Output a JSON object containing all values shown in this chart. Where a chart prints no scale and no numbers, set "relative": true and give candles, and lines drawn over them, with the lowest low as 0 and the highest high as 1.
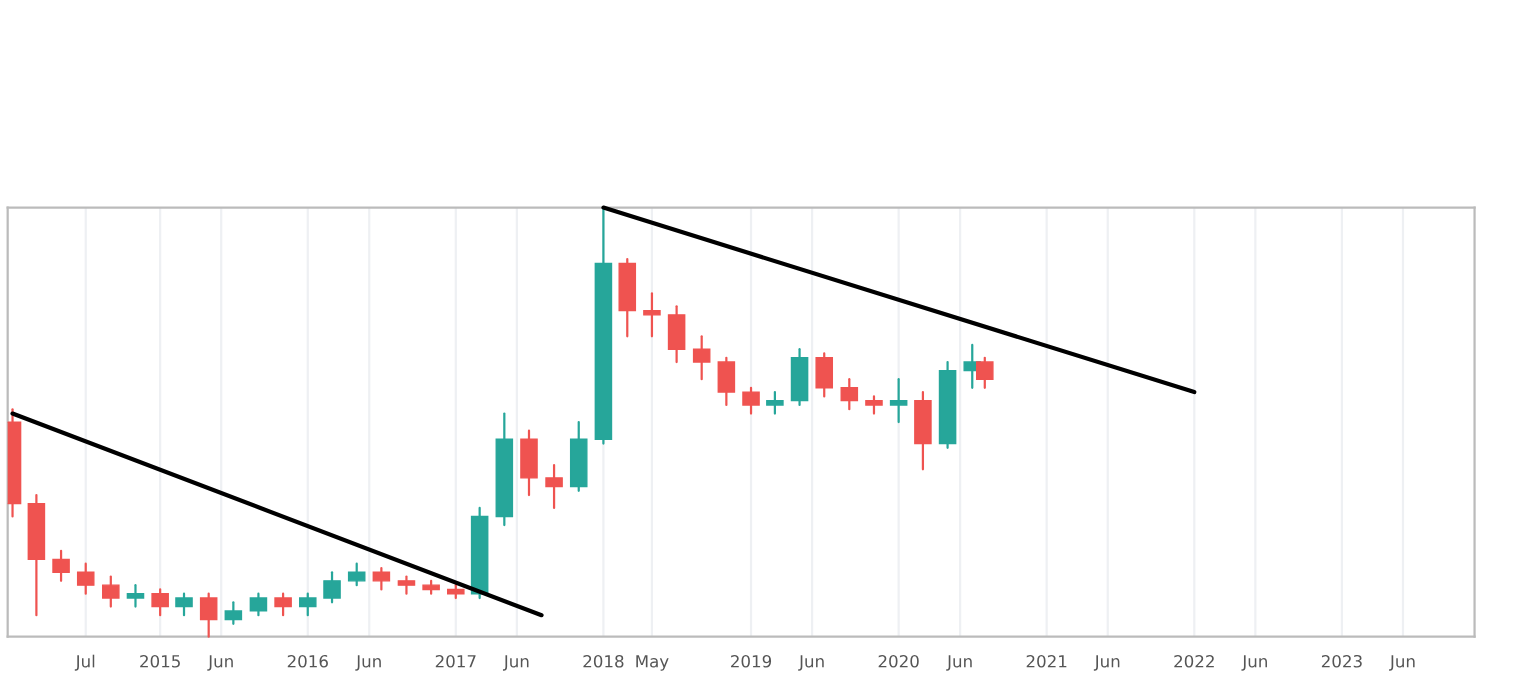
{
  "chart_data": {
    "type": "candlestick",
    "relative": true,
    "x": [
      "2014-01",
      "2014-03",
      "2014-05",
      "2014-07",
      "2014-09",
      "2014-11",
      "2015-01",
      "2015-03",
      "2015-05",
      "2015-07",
      "2015-09",
      "2015-11",
      "2016-01",
      "2016-03",
      "2016-05",
      "2016-07",
      "2016-09",
      "2016-11",
      "2017-01",
      "2017-03",
      "2017-05",
      "2017-07",
      "2017-09",
      "2017-11",
      "2018-01",
      "2018-03",
      "2018-05",
      "2018-07",
      "2018-09",
      "2018-11",
      "2019-01",
      "2019-03",
      "2019-05",
      "2019-07",
      "2019-09",
      "2019-11",
      "2020-01",
      "2020-03",
      "2020-05",
      "2020-07",
      "2020-08"
    ],
    "ohlc": [
      [
        0.5,
        0.53,
        0.28,
        0.31
      ],
      [
        0.31,
        0.33,
        0.05,
        0.18
      ],
      [
        0.18,
        0.2,
        0.13,
        0.15
      ],
      [
        0.15,
        0.17,
        0.1,
        0.12
      ],
      [
        0.12,
        0.14,
        0.07,
        0.09
      ],
      [
        0.09,
        0.12,
        0.07,
        0.1
      ],
      [
        0.1,
        0.11,
        0.05,
        0.07
      ],
      [
        0.07,
        0.1,
        0.05,
        0.09
      ],
      [
        0.09,
        0.1,
        0,
        0.04
      ],
      [
        0.04,
        0.08,
        0.03,
        0.06
      ],
      [
        0.06,
        0.1,
        0.05,
        0.09
      ],
      [
        0.09,
        0.1,
        0.05,
        0.07
      ],
      [
        0.07,
        0.1,
        0.05,
        0.09
      ],
      [
        0.09,
        0.15,
        0.08,
        0.13
      ],
      [
        0.13,
        0.17,
        0.12,
        0.15
      ],
      [
        0.15,
        0.16,
        0.11,
        0.13
      ],
      [
        0.13,
        0.14,
        0.1,
        0.12
      ],
      [
        0.12,
        0.13,
        0.1,
        0.11
      ],
      [
        0.11,
        0.12,
        0.09,
        0.1
      ],
      [
        0.1,
        0.3,
        0.09,
        0.28
      ],
      [
        0.28,
        0.52,
        0.26,
        0.46
      ],
      [
        0.46,
        0.48,
        0.33,
        0.37
      ],
      [
        0.37,
        0.4,
        0.3,
        0.35
      ],
      [
        0.35,
        0.5,
        0.34,
        0.46
      ],
      [
        0.46,
        1,
        0.45,
        0.87
      ],
      [
        0.87,
        0.88,
        0.7,
        0.76
      ],
      [
        0.76,
        0.8,
        0.7,
        0.75
      ],
      [
        0.75,
        0.77,
        0.64,
        0.67
      ],
      [
        0.67,
        0.7,
        0.6,
        0.64
      ],
      [
        0.64,
        0.65,
        0.54,
        0.57
      ],
      [
        0.57,
        0.58,
        0.52,
        0.54
      ],
      [
        0.54,
        0.57,
        0.52,
        0.55
      ],
      [
        0.55,
        0.67,
        0.54,
        0.65
      ],
      [
        0.65,
        0.66,
        0.56,
        0.58
      ],
      [
        0.58,
        0.6,
        0.53,
        0.55
      ],
      [
        0.55,
        0.56,
        0.52,
        0.54
      ],
      [
        0.54,
        0.6,
        0.5,
        0.55
      ],
      [
        0.55,
        0.57,
        0.39,
        0.45
      ],
      [
        0.45,
        0.64,
        0.44,
        0.62
      ],
      [
        0.62,
        0.68,
        0.58,
        0.64
      ],
      [
        0.64,
        0.65,
        0.58,
        0.6
      ]
    ],
    "colors": [
      "#ef5350",
      "#ef5350",
      "#ef5350",
      "#ef5350",
      "#ef5350",
      "#26a69a",
      "#ef5350",
      "#26a69a",
      "#ef5350",
      "#26a69a",
      "#26a69a",
      "#ef5350",
      "#26a69a",
      "#26a69a",
      "#26a69a",
      "#ef5350",
      "#ef5350",
      "#ef5350",
      "#ef5350",
      "#26a69a",
      "#26a69a",
      "#ef5350",
      "#ef5350",
      "#26a69a",
      "#26a69a",
      "#ef5350",
      "#ef5350",
      "#ef5350",
      "#ef5350",
      "#ef5350",
      "#ef5350",
      "#26a69a",
      "#26a69a",
      "#ef5350",
      "#ef5350",
      "#ef5350",
      "#26a69a",
      "#ef5350",
      "#26a69a",
      "#26a69a",
      "#ef5350"
    ],
    "series": [
      {
        "type": "line",
        "color": "#000000",
        "x": [
          "2014-01",
          "2017-08"
        ],
        "values": [
          0.52,
          0.05
        ]
      },
      {
        "type": "line",
        "color": "#000000",
        "x": [
          "2018-01",
          "2022-01"
        ],
        "values": [
          1,
          0.57
        ]
      }
    ],
    "xlim": [
      "2013-12-20",
      "2023-11-25"
    ],
    "grid": "x",
    "xticks": [
      {
        "value": "2014-07-01",
        "label": "Jul"
      },
      {
        "value": "2015-01-01",
        "label": "2015"
      },
      {
        "value": "2015-06-01",
        "label": "Jun"
      },
      {
        "value": "2016-01-01",
        "label": "2016"
      },
      {
        "value": "2016-06-01",
        "label": "Jun"
      },
      {
        "value": "2017-01-01",
        "label": "2017"
      },
      {
        "value": "2017-06-01",
        "label": "Jun"
      },
      {
        "value": "2018-01-01",
        "label": "2018"
      },
      {
        "value": "2018-05-01",
        "label": "May"
      },
      {
        "value": "2019-01-01",
        "label": "2019"
      },
      {
        "value": "2019-06-01",
        "label": "Jun"
      },
      {
        "value": "2020-01-01",
        "label": "2020"
      },
      {
        "value": "2020-06-01",
        "label": "Jun"
      },
      {
        "value": "2021-01-01",
        "label": "2021"
      },
      {
        "value": "2021-06-01",
        "label": "Jun"
      },
      {
        "value": "2022-01-01",
        "label": "2022"
      },
      {
        "value": "2022-06-01",
        "label": "Jun"
      },
      {
        "value": "2023-01-01",
        "label": "2023"
      },
      {
        "value": "2023-06-01",
        "label": "Jun"
      }
    ]
  }
}
